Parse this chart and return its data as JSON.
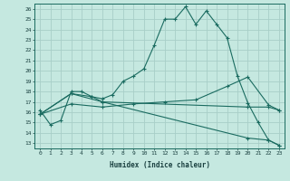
{
  "xlabel": "Humidex (Indice chaleur)",
  "xlim": [
    -0.5,
    23.5
  ],
  "ylim": [
    12.5,
    26.5
  ],
  "xticks": [
    0,
    1,
    2,
    3,
    4,
    5,
    6,
    7,
    8,
    9,
    10,
    11,
    12,
    13,
    14,
    15,
    16,
    17,
    18,
    19,
    20,
    21,
    22,
    23
  ],
  "yticks": [
    13,
    14,
    15,
    16,
    17,
    18,
    19,
    20,
    21,
    22,
    23,
    24,
    25,
    26
  ],
  "bg_color": "#c5e8e0",
  "grid_color": "#a8cec8",
  "line_color": "#1a6b60",
  "line1_x": [
    0,
    1,
    2,
    3,
    4,
    5,
    6,
    7,
    8,
    9,
    10,
    11,
    12,
    13,
    14,
    15,
    16,
    17,
    18,
    19,
    20,
    21,
    22,
    23
  ],
  "line1_y": [
    16.2,
    14.8,
    15.2,
    18.0,
    18.0,
    17.5,
    17.3,
    17.7,
    19.0,
    19.5,
    20.2,
    22.5,
    25.0,
    25.0,
    26.2,
    24.5,
    25.8,
    24.5,
    23.2,
    19.5,
    16.9,
    15.0,
    13.3,
    12.8
  ],
  "line2_x": [
    0,
    3,
    6,
    9,
    12,
    15,
    18,
    20,
    22,
    23
  ],
  "line2_y": [
    15.8,
    16.8,
    16.5,
    16.8,
    17.0,
    17.2,
    18.5,
    19.4,
    16.7,
    16.2
  ],
  "line3_x": [
    0,
    3,
    6,
    20,
    22,
    23
  ],
  "line3_y": [
    15.8,
    17.8,
    17.0,
    16.5,
    16.5,
    16.2
  ],
  "line4_x": [
    0,
    3,
    5,
    6,
    20,
    22,
    23
  ],
  "line4_y": [
    15.8,
    17.8,
    17.5,
    17.0,
    13.5,
    13.3,
    12.8
  ]
}
